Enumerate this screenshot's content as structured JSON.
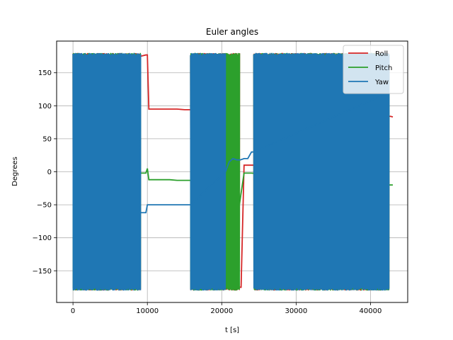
{
  "chart_data": {
    "type": "line",
    "title": "Euler angles",
    "xlabel": "t [s]",
    "ylabel": "Degrees",
    "xlim": [
      -2200,
      45000
    ],
    "ylim": [
      -198,
      198
    ],
    "xticks": [
      0,
      10000,
      20000,
      30000,
      40000
    ],
    "xtick_labels": [
      "0",
      "10000",
      "20000",
      "30000",
      "40000"
    ],
    "yticks": [
      -150,
      -100,
      -50,
      0,
      50,
      100,
      150
    ],
    "ytick_labels": [
      "−150",
      "−100",
      "−50",
      "0",
      "50",
      "100",
      "150"
    ],
    "grid": true,
    "legend_position": "top-right",
    "series": [
      {
        "name": "Roll",
        "color": "#d62728",
        "dense_bands": [
          [
            0,
            9100
          ],
          [
            15800,
            22400
          ],
          [
            24300,
            42500
          ]
        ],
        "x": [
          9100,
          9800,
          10000,
          10200,
          11000,
          12000,
          13000,
          14000,
          15000,
          15500,
          15800,
          22400,
          22600,
          23000,
          23500,
          24000,
          24300,
          42500,
          42700,
          43000
        ],
        "y": [
          175,
          177,
          177,
          95,
          95,
          95,
          95,
          95,
          94,
          94,
          94,
          -175,
          -175,
          10,
          10,
          10,
          10,
          84,
          84,
          83
        ]
      },
      {
        "name": "Pitch",
        "color": "#2ca02c",
        "dense_bands": [
          [
            0,
            9100
          ],
          [
            15800,
            22400
          ],
          [
            24300,
            42500
          ]
        ],
        "x": [
          9100,
          9800,
          10000,
          10200,
          11000,
          12000,
          13000,
          14000,
          15000,
          15500,
          15800,
          20000,
          21000,
          22000,
          22400,
          23000,
          24000,
          42500,
          42700,
          43000
        ],
        "y": [
          -2,
          -2,
          5,
          -12,
          -12,
          -12,
          -12,
          -13,
          -13,
          -13,
          -13,
          -48,
          -48,
          -48,
          -48,
          -2,
          -2,
          -20,
          -20,
          -20
        ]
      },
      {
        "name": "Yaw",
        "color": "#1f77b4",
        "dense_bands": [
          [
            0,
            9100
          ],
          [
            15800,
            20500
          ],
          [
            24300,
            42500
          ]
        ],
        "x": [
          9100,
          9500,
          9800,
          10000,
          10200,
          11000,
          12000,
          13000,
          14000,
          15000,
          15500,
          15800,
          20500,
          21000,
          21500,
          22000,
          22500,
          23000,
          23500,
          24000,
          24300,
          42500
        ],
        "y": [
          -62,
          -62,
          -62,
          -50,
          -50,
          -50,
          -50,
          -50,
          -50,
          -50,
          -50,
          -50,
          0,
          15,
          20,
          18,
          18,
          20,
          20,
          30,
          30,
          120
        ]
      }
    ]
  }
}
